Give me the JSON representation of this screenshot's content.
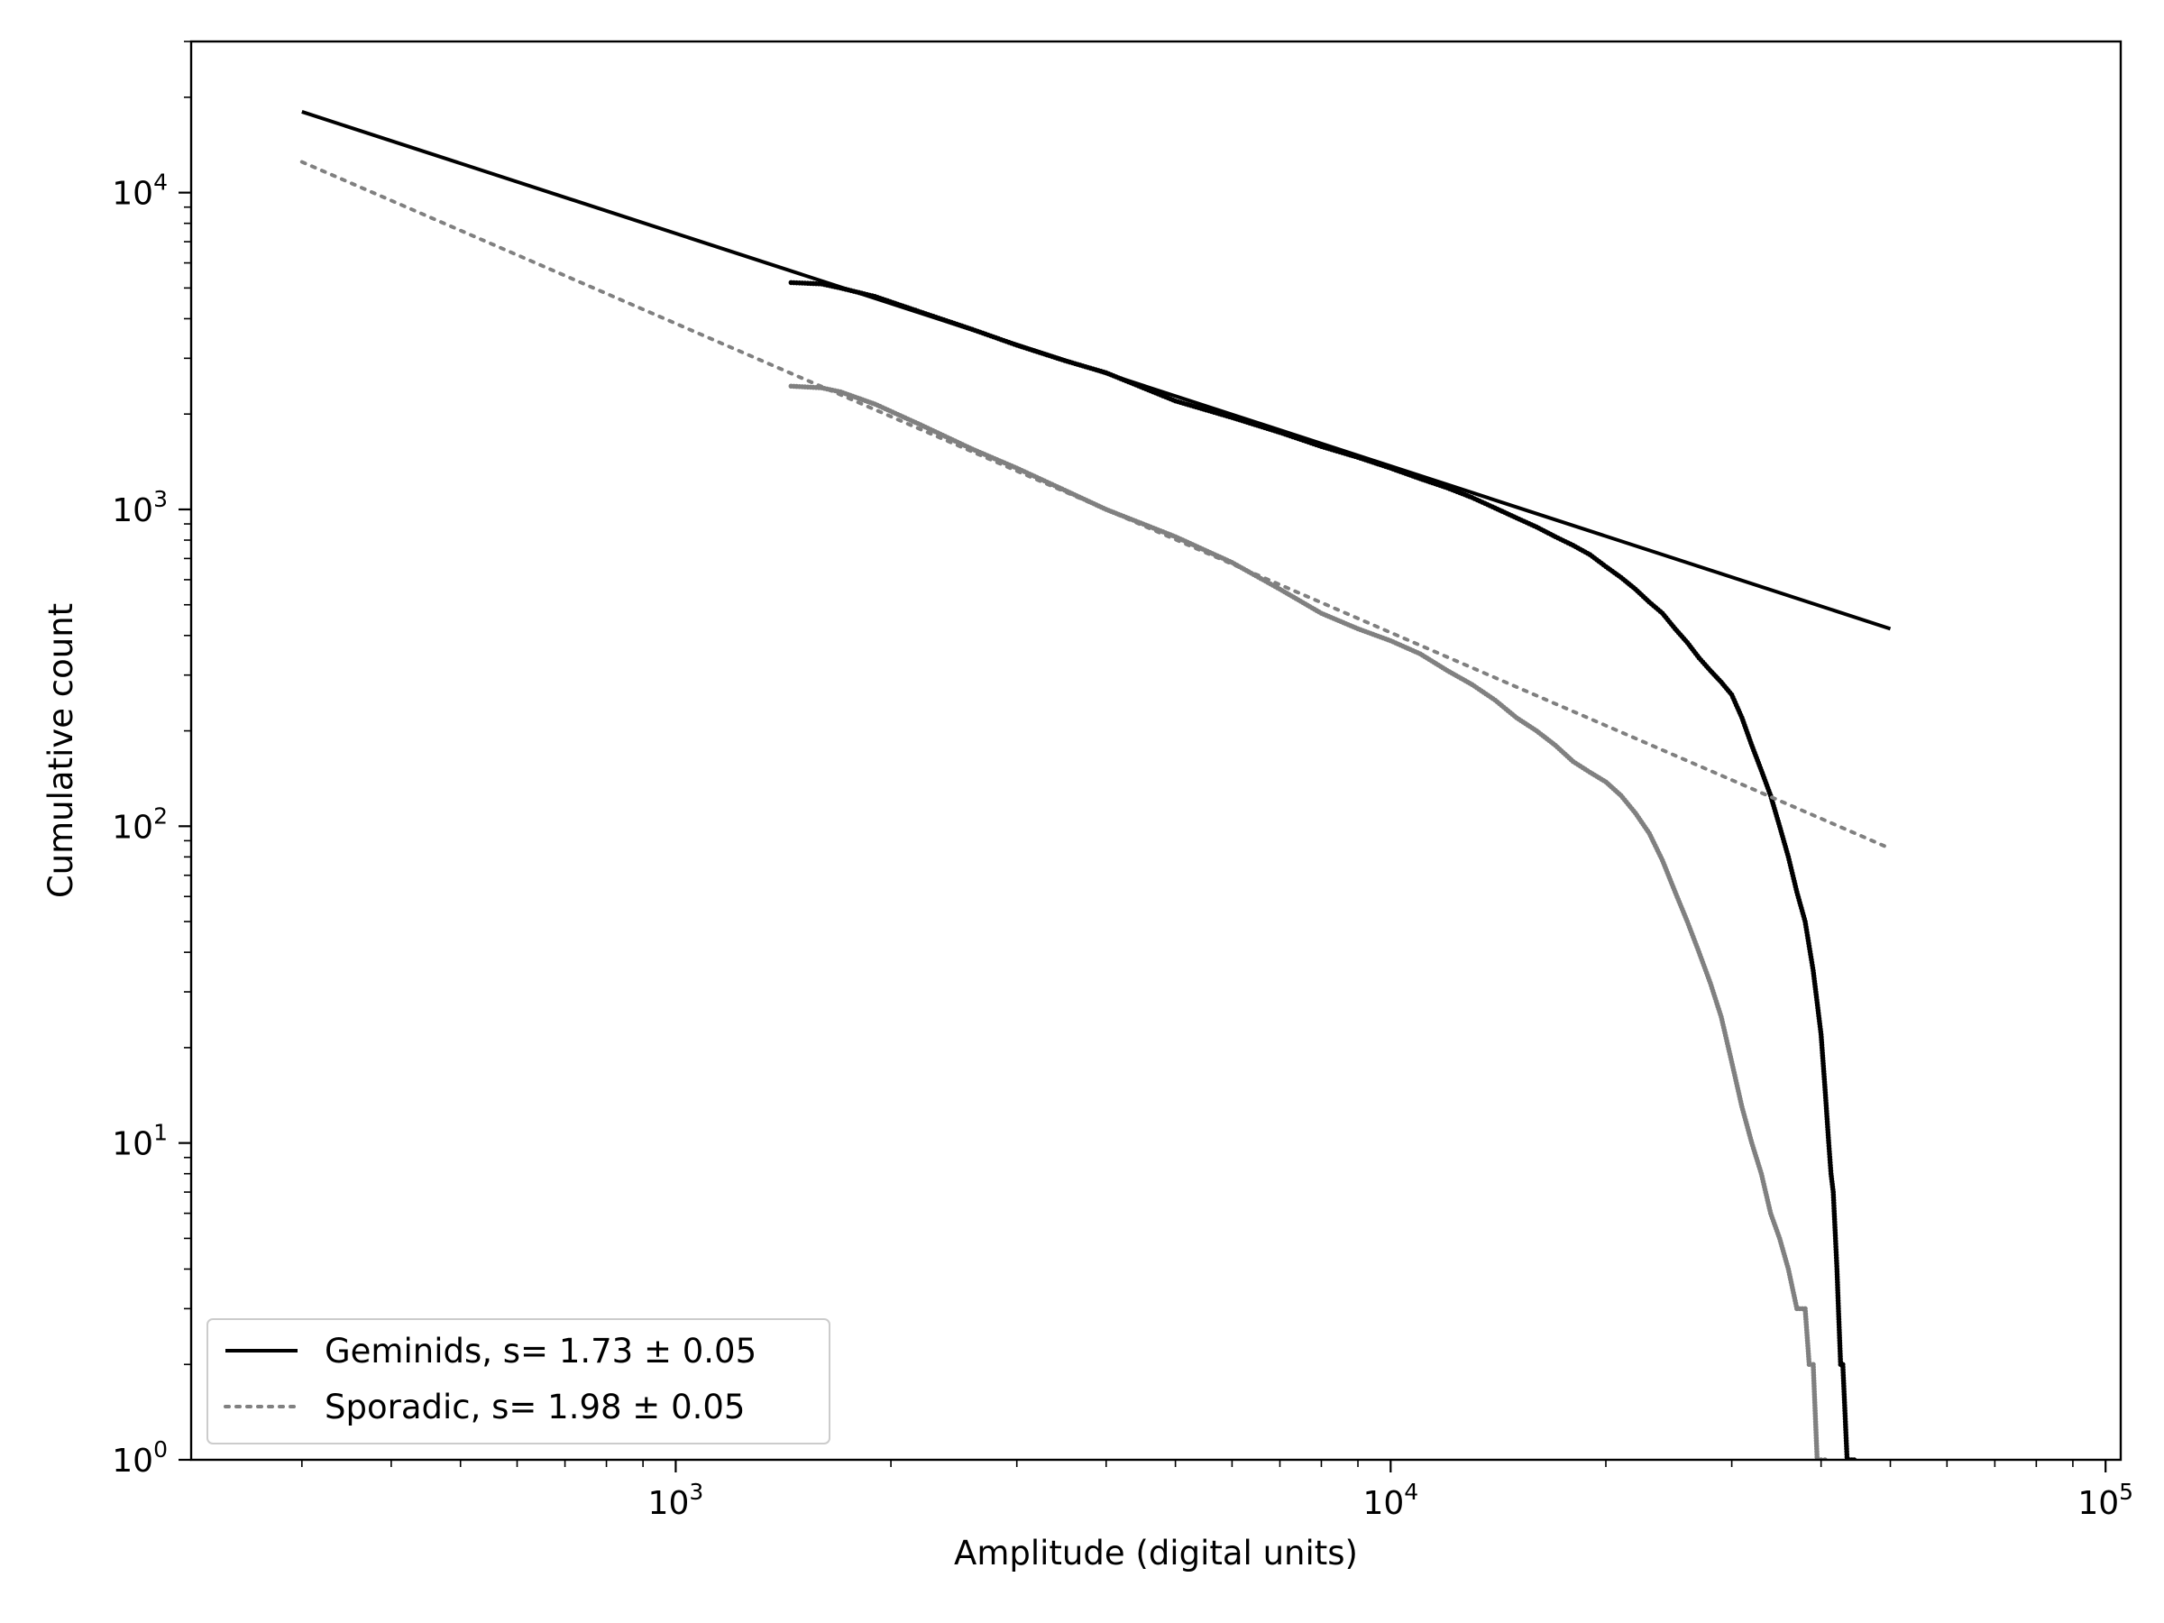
{
  "chart_data": {
    "type": "scatter",
    "xlabel": "Amplitude (digital units)",
    "ylabel": "Cumulative count",
    "xscale": "log",
    "yscale": "log",
    "xlim": [
      210,
      105000
    ],
    "ylim": [
      1,
      30000
    ],
    "x_ticks": [
      {
        "base": "10",
        "exp": "3",
        "value": 1000
      },
      {
        "base": "10",
        "exp": "4",
        "value": 10000
      },
      {
        "base": "10",
        "exp": "5",
        "value": 100000
      }
    ],
    "y_ticks": [
      {
        "base": "10",
        "exp": "0",
        "value": 1
      },
      {
        "base": "10",
        "exp": "1",
        "value": 10
      },
      {
        "base": "10",
        "exp": "2",
        "value": 100
      },
      {
        "base": "10",
        "exp": "3",
        "value": 1000
      },
      {
        "base": "10",
        "exp": "4",
        "value": 10000
      }
    ],
    "legend_position": "lower-left",
    "series": [
      {
        "name": "Geminids, s= 1.73 ± 0.05",
        "color": "#000000",
        "fit_line": {
          "style": "solid",
          "x": [
            300,
            50000
          ],
          "y": [
            18000,
            420
          ]
        },
        "data": {
          "x": [
            1450,
            1600,
            1700,
            1900,
            2200,
            2600,
            3000,
            3500,
            4000,
            5000,
            6000,
            7000,
            8000,
            9000,
            10000,
            11000,
            12000,
            13000,
            14000,
            15000,
            16000,
            17000,
            18000,
            19000,
            20000,
            21000,
            22000,
            23000,
            24000,
            25000,
            26000,
            27000,
            28000,
            29000,
            30000,
            31000,
            32000,
            33000,
            34000,
            35000,
            36000,
            37000,
            38000,
            39000,
            40000,
            40500,
            41000,
            41300,
            41600,
            41900,
            42100,
            42300,
            42600,
            42900,
            43500,
            44500
          ],
          "y": [
            5200,
            5150,
            5000,
            4700,
            4200,
            3700,
            3300,
            2950,
            2700,
            2200,
            1950,
            1750,
            1580,
            1460,
            1350,
            1250,
            1170,
            1090,
            1010,
            940,
            880,
            820,
            770,
            720,
            660,
            610,
            560,
            510,
            470,
            420,
            380,
            340,
            310,
            285,
            260,
            220,
            180,
            150,
            125,
            100,
            80,
            62,
            50,
            35,
            22,
            15,
            10,
            8,
            7,
            5,
            4,
            3,
            2,
            2,
            1,
            1
          ]
        }
      },
      {
        "name": "Sporadic, s= 1.98 ± 0.05",
        "color": "#808080",
        "fit_line": {
          "style": "dotted",
          "x": [
            300,
            50000
          ],
          "y": [
            12500,
            85
          ]
        },
        "data": {
          "x": [
            1450,
            1600,
            1700,
            1900,
            2200,
            2600,
            3000,
            3500,
            4000,
            5000,
            6000,
            7000,
            8000,
            9000,
            10000,
            11000,
            12000,
            13000,
            14000,
            15000,
            16000,
            17000,
            18000,
            19000,
            20000,
            21000,
            22000,
            23000,
            24000,
            25000,
            26000,
            27000,
            28000,
            29000,
            30000,
            31000,
            32000,
            33000,
            34000,
            35000,
            36000,
            37000,
            38000,
            38500,
            39000,
            39500,
            40000,
            40500
          ],
          "y": [
            2450,
            2420,
            2350,
            2150,
            1850,
            1550,
            1350,
            1150,
            1000,
            820,
            680,
            560,
            470,
            420,
            385,
            350,
            310,
            280,
            250,
            220,
            200,
            180,
            160,
            148,
            138,
            125,
            110,
            95,
            78,
            62,
            50,
            40,
            32,
            25,
            18,
            13,
            10,
            8,
            6,
            5,
            4,
            3,
            3,
            2,
            2,
            1,
            1,
            1
          ]
        }
      }
    ]
  }
}
